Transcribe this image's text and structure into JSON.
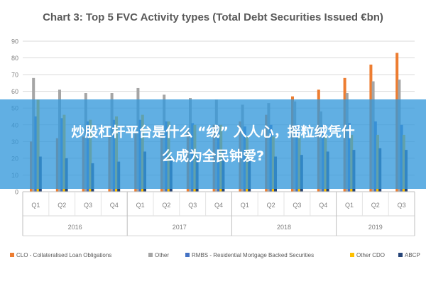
{
  "chart_data": {
    "type": "bar",
    "title": "Chart 3: Top 5 FVC Activity types (Total Debt Securities Issued €bn)",
    "ylim": [
      0,
      90
    ],
    "yticks": [
      0,
      10,
      20,
      30,
      40,
      50,
      60,
      70,
      80,
      90
    ],
    "grid": true,
    "legend_position": "bottom",
    "categories": [
      "Q1",
      "Q2",
      "Q3",
      "Q4",
      "Q1",
      "Q2",
      "Q3",
      "Q4",
      "Q1",
      "Q2",
      "Q3",
      "Q4",
      "Q1",
      "Q2",
      "Q3"
    ],
    "groups": [
      {
        "label": "2016",
        "count": 4
      },
      {
        "label": "2017",
        "count": 4
      },
      {
        "label": "2018",
        "count": 4
      },
      {
        "label": "2019",
        "count": 3
      }
    ],
    "series": [
      {
        "name": "CLO - Collateralised Loan Obligations",
        "color": "#ED7D31",
        "values": [
          30,
          32,
          33,
          34,
          35,
          36,
          37,
          40,
          42,
          46,
          57,
          61,
          68,
          76,
          83
        ]
      },
      {
        "name": "Other",
        "color": "#A5A5A5",
        "values": [
          68,
          61,
          59,
          59,
          62,
          58,
          56,
          55,
          52,
          53,
          54,
          48,
          59,
          66,
          67
        ]
      },
      {
        "name": "RMBS - Residential Mortgage Backed Securities",
        "color": "#4472C4",
        "values": [
          45,
          44,
          42,
          43,
          43,
          42,
          41,
          40,
          39,
          40,
          40,
          40,
          41,
          42,
          40
        ]
      },
      {
        "name": "Other CDO",
        "color": "#FFC000",
        "values": [
          55,
          46,
          43,
          45,
          46,
          42,
          40,
          40,
          33,
          33,
          33,
          34,
          34,
          34,
          34
        ]
      },
      {
        "name": "ABCP",
        "color": "#264478",
        "values": [
          21,
          20,
          17,
          18,
          24,
          21,
          21,
          25,
          21,
          21,
          22,
          24,
          25,
          26,
          25
        ]
      }
    ]
  },
  "overlay": {
    "line1": "炒股杠杆平台是什么 “绒” 入人心，摇粒绒凭什",
    "line2": "么成为全民钟爱?"
  }
}
